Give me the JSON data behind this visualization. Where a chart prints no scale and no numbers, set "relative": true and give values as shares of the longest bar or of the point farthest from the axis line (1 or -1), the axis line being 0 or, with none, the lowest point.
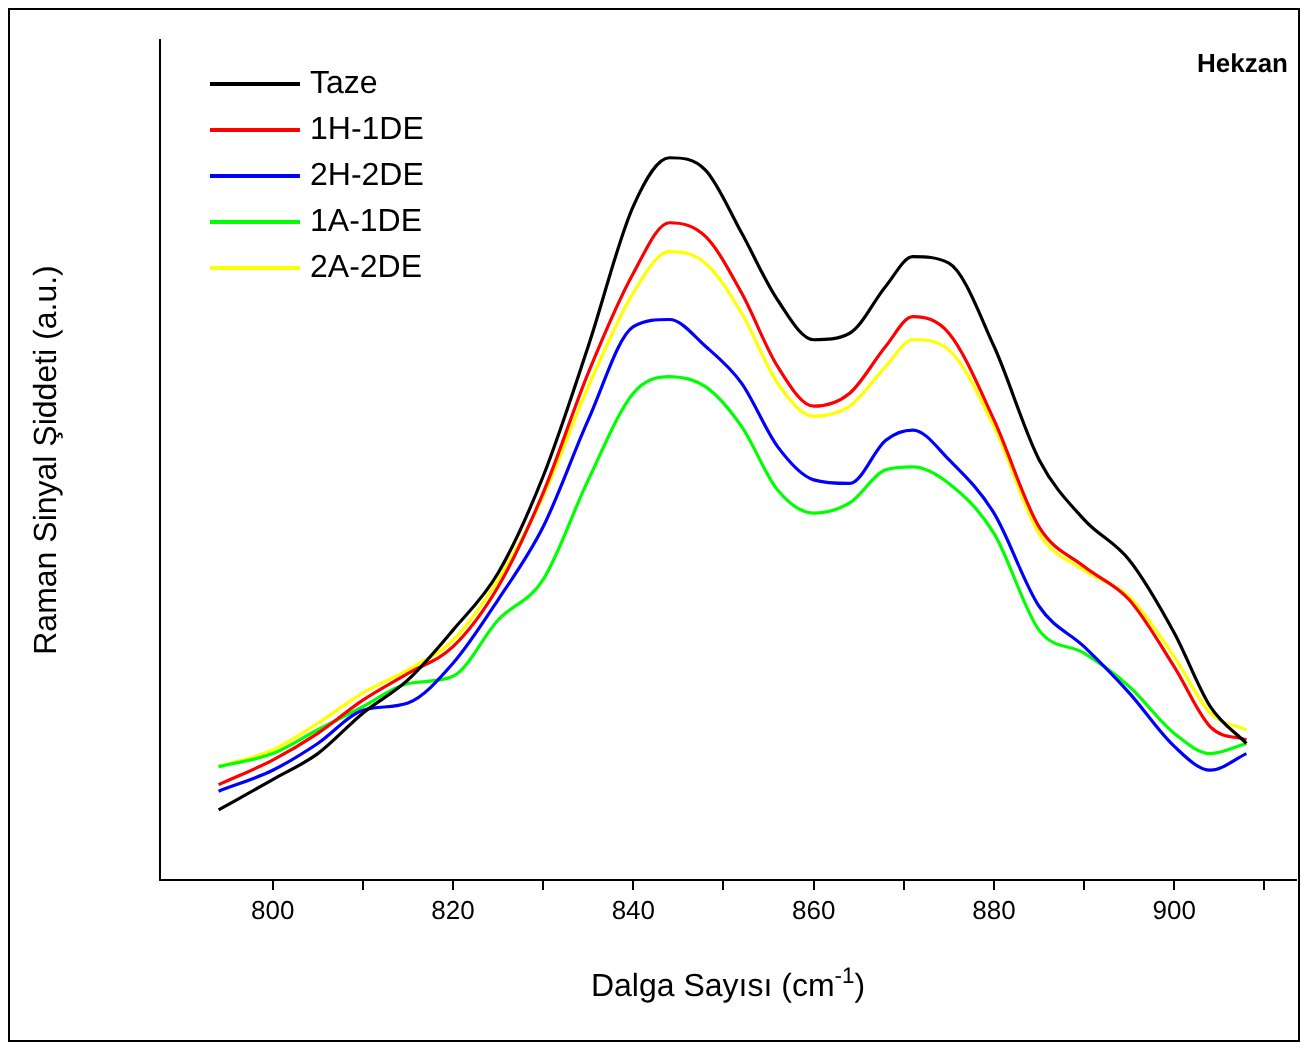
{
  "chart_data": {
    "type": "line",
    "xlabel": "Dalga Sayısı (cm$^{-1}$)",
    "ylabel": "Raman Sinyal Şiddeti (a.u.)",
    "annotations": [
      "Hekzan"
    ],
    "relative": true,
    "grid": false,
    "legend": "top left",
    "marker": "none",
    "xlim": [
      787.5,
      913.5
    ],
    "xticks": [
      800,
      {
        "value": 810,
        "label": null
      },
      820,
      {
        "value": 830,
        "label": null
      },
      840,
      {
        "value": 850,
        "label": null
      },
      860,
      {
        "value": 870,
        "label": null
      },
      880,
      {
        "value": 890,
        "label": null
      },
      900,
      {
        "value": 910,
        "label": null
      }
    ],
    "x": [
      794,
      800,
      805,
      810,
      815,
      820,
      825,
      830,
      835,
      840,
      844,
      848,
      852,
      856,
      860,
      864,
      868,
      871,
      875,
      880,
      885,
      890,
      895,
      900,
      904,
      908
    ],
    "series": [
      {
        "name": "Taze",
        "color": "#000000",
        "values": [
          0.097,
          0.139,
          0.175,
          0.231,
          0.277,
          0.346,
          0.425,
          0.559,
          0.739,
          0.933,
          1.0,
          0.983,
          0.896,
          0.803,
          0.748,
          0.757,
          0.822,
          0.863,
          0.854,
          0.739,
          0.582,
          0.499,
          0.443,
          0.342,
          0.24,
          0.189
        ]
      },
      {
        "name": "1H-1DE",
        "color": "#ff0000",
        "values": [
          0.132,
          0.166,
          0.203,
          0.249,
          0.286,
          0.323,
          0.406,
          0.536,
          0.702,
          0.84,
          0.91,
          0.891,
          0.813,
          0.711,
          0.656,
          0.674,
          0.739,
          0.78,
          0.757,
          0.637,
          0.489,
          0.434,
          0.388,
          0.295,
          0.212,
          0.194
        ]
      },
      {
        "name": "2H-2DE",
        "color": "#0000ff",
        "values": [
          0.123,
          0.152,
          0.189,
          0.235,
          0.245,
          0.3,
          0.388,
          0.489,
          0.637,
          0.766,
          0.776,
          0.739,
          0.688,
          0.6,
          0.554,
          0.549,
          0.609,
          0.623,
          0.582,
          0.508,
          0.379,
          0.323,
          0.259,
          0.185,
          0.152,
          0.175
        ]
      },
      {
        "name": "1A-1DE",
        "color": "#00ff00",
        "values": [
          0.157,
          0.175,
          0.208,
          0.24,
          0.272,
          0.282,
          0.36,
          0.416,
          0.554,
          0.674,
          0.697,
          0.683,
          0.628,
          0.54,
          0.508,
          0.522,
          0.568,
          0.572,
          0.549,
          0.48,
          0.346,
          0.314,
          0.268,
          0.203,
          0.175,
          0.189
        ]
      },
      {
        "name": "2A-2DE",
        "color": "#ffff00",
        "values": [
          0.157,
          0.18,
          0.217,
          0.259,
          0.291,
          0.332,
          0.416,
          0.531,
          0.683,
          0.813,
          0.87,
          0.854,
          0.785,
          0.688,
          0.642,
          0.656,
          0.711,
          0.748,
          0.734,
          0.628,
          0.48,
          0.429,
          0.392,
          0.309,
          0.231,
          0.208
        ]
      }
    ]
  }
}
